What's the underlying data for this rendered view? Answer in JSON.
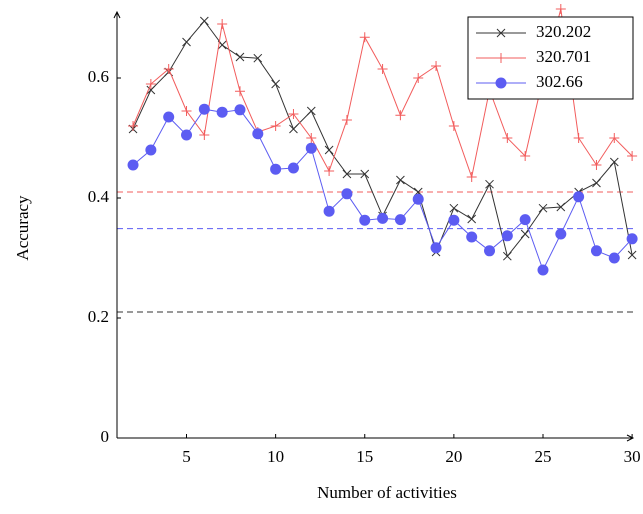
{
  "chart_data": {
    "type": "line",
    "x_label": "Number of activities",
    "y_label": "Accuracy",
    "x": [
      2,
      3,
      4,
      5,
      6,
      7,
      8,
      9,
      10,
      11,
      12,
      13,
      14,
      15,
      16,
      17,
      18,
      19,
      20,
      21,
      22,
      23,
      24,
      25,
      26,
      27,
      28,
      29,
      30
    ],
    "series": [
      {
        "name": "320.202",
        "color": "#333333",
        "marker": "x",
        "values": [
          0.515,
          0.58,
          0.61,
          0.66,
          0.695,
          0.655,
          0.635,
          0.633,
          0.59,
          0.515,
          0.545,
          0.48,
          0.44,
          0.44,
          0.37,
          0.43,
          0.41,
          0.31,
          0.383,
          0.365,
          0.423,
          0.303,
          0.34,
          0.383,
          0.385,
          0.41,
          0.425,
          0.46,
          0.305
        ]
      },
      {
        "name": "320.701",
        "color": "#f25c5c",
        "marker": "+",
        "values": [
          0.52,
          0.59,
          0.615,
          0.545,
          0.505,
          0.69,
          0.578,
          0.51,
          0.52,
          0.54,
          0.5,
          0.445,
          0.53,
          0.668,
          0.615,
          0.538,
          0.6,
          0.62,
          0.52,
          0.435,
          0.58,
          0.5,
          0.47,
          0.6,
          0.715,
          0.5,
          0.455,
          0.5,
          0.47
        ]
      },
      {
        "name": "302.66",
        "color": "#5c5cf2",
        "marker": "circle",
        "values": [
          0.455,
          0.48,
          0.535,
          0.505,
          0.548,
          0.543,
          0.547,
          0.507,
          0.448,
          0.45,
          0.483,
          0.378,
          0.407,
          0.363,
          0.366,
          0.364,
          0.398,
          0.317,
          0.363,
          0.335,
          0.312,
          0.337,
          0.364,
          0.28,
          0.34,
          0.402,
          0.312,
          0.3,
          0.332
        ]
      }
    ],
    "reference_lines": [
      {
        "value": 0.41,
        "color": "#f25c5c"
      },
      {
        "value": 0.349,
        "color": "#5c5cf2"
      },
      {
        "value": 0.21,
        "color": "#333333"
      }
    ],
    "xlim": [
      1.1,
      30.05
    ],
    "ylim": [
      0,
      0.71
    ],
    "xticks": [
      5,
      10,
      15,
      20,
      25,
      30
    ],
    "yticks": [
      0,
      0.2,
      0.4,
      0.6
    ],
    "legend": "top-right"
  }
}
